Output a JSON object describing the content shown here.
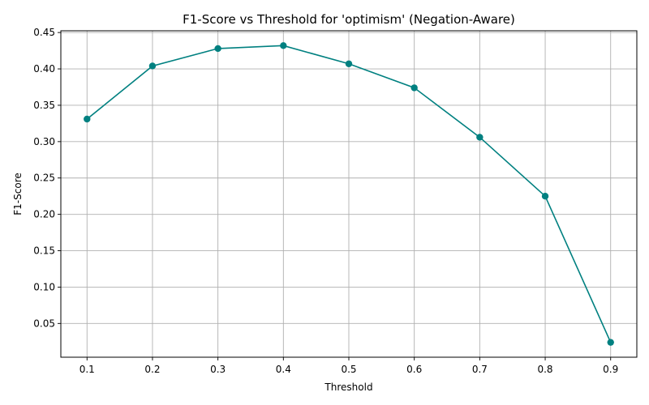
{
  "chart_data": {
    "type": "line",
    "title": "F1-Score vs Threshold for 'optimism' (Negation-Aware)",
    "xlabel": "Threshold",
    "ylabel": "F1-Score",
    "x": [
      0.1,
      0.2,
      0.3,
      0.4,
      0.5,
      0.6,
      0.7,
      0.8,
      0.9
    ],
    "x_tick_labels": [
      "0.1",
      "0.2",
      "0.3",
      "0.4",
      "0.5",
      "0.6",
      "0.7",
      "0.8",
      "0.9"
    ],
    "y_ticks": [
      0.05,
      0.1,
      0.15,
      0.2,
      0.25,
      0.3,
      0.35,
      0.4,
      0.45
    ],
    "y_tick_labels": [
      "0.05",
      "0.10",
      "0.15",
      "0.20",
      "0.25",
      "0.30",
      "0.35",
      "0.40",
      "0.45"
    ],
    "series": [
      {
        "values": [
          0.331,
          0.404,
          0.428,
          0.432,
          0.407,
          0.374,
          0.306,
          0.225,
          0.024
        ],
        "color": "#008080",
        "marker": "circle"
      }
    ],
    "xlim": [
      0.06,
      0.94
    ],
    "ylim": [
      0.0036,
      0.4524
    ],
    "grid": true
  }
}
